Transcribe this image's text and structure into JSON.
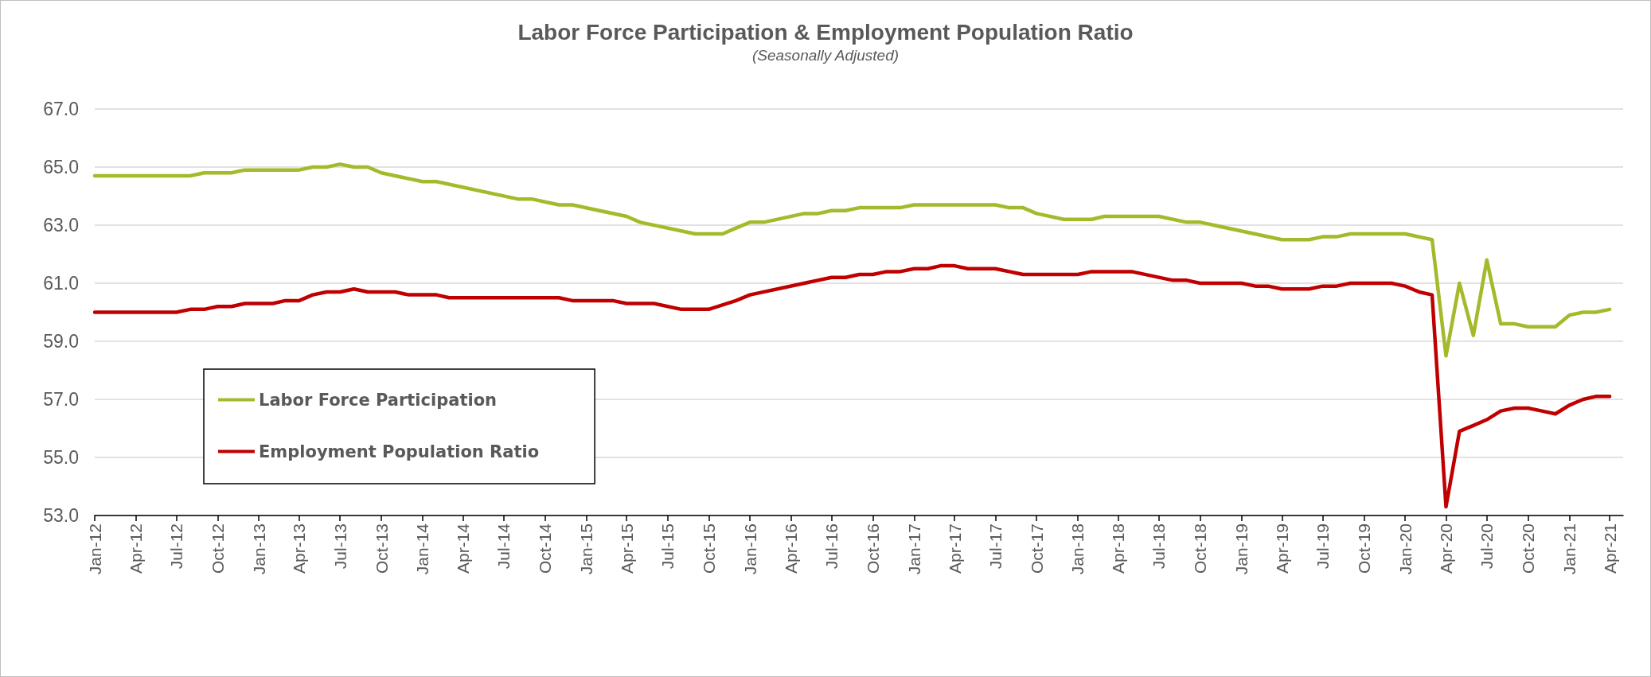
{
  "chart_data": {
    "type": "line",
    "title": "Labor Force Participation & Employment Population Ratio",
    "subtitle": "(Seasonally Adjusted)",
    "series": [
      {
        "name": "Labor Force Participation",
        "color": "#a5b92b",
        "x": [
          "2012-01",
          "2012-08",
          "2012-09",
          "2012-11",
          "2012-12",
          "2013-04",
          "2013-05",
          "2013-06",
          "2013-07",
          "2013-08",
          "2013-09",
          "2013-10",
          "2014-01",
          "2014-02",
          "2014-08",
          "2014-09",
          "2014-11",
          "2014-12",
          "2015-04",
          "2015-05",
          "2015-09",
          "2015-11",
          "2015-12",
          "2016-01",
          "2016-02",
          "2016-05",
          "2016-06",
          "2016-07",
          "2016-08",
          "2016-09",
          "2016-12",
          "2017-01",
          "2017-07",
          "2017-08",
          "2017-09",
          "2017-10",
          "2017-12",
          "2018-02",
          "2018-03",
          "2018-07",
          "2018-09",
          "2018-10",
          "2019-04",
          "2019-06",
          "2019-07",
          "2019-08",
          "2019-09",
          "2020-01",
          "2020-03",
          "2020-04",
          "2020-05",
          "2020-06",
          "2020-07",
          "2020-08",
          "2020-09",
          "2020-10",
          "2020-12",
          "2021-01",
          "2021-02",
          "2021-03",
          "2021-04"
        ],
        "values": [
          64.7,
          64.7,
          64.8,
          64.8,
          64.9,
          64.9,
          65.0,
          65.0,
          65.1,
          65.0,
          65.0,
          64.8,
          64.5,
          64.5,
          63.9,
          63.9,
          63.7,
          63.7,
          63.3,
          63.1,
          62.7,
          62.7,
          62.9,
          63.1,
          63.1,
          63.4,
          63.4,
          63.5,
          63.5,
          63.6,
          63.6,
          63.7,
          63.7,
          63.6,
          63.6,
          63.4,
          63.2,
          63.2,
          63.3,
          63.3,
          63.1,
          63.1,
          62.5,
          62.5,
          62.6,
          62.6,
          62.7,
          62.7,
          62.5,
          58.5,
          61.0,
          59.2,
          61.8,
          59.6,
          59.6,
          59.5,
          59.5,
          59.9,
          60.0,
          60.0,
          60.1
        ]
      },
      {
        "name": "Employment Population Ratio",
        "color": "#c00000",
        "x": [
          "2012-01",
          "2012-07",
          "2012-08",
          "2012-09",
          "2012-10",
          "2012-11",
          "2012-12",
          "2013-02",
          "2013-03",
          "2013-04",
          "2013-05",
          "2013-06",
          "2013-07",
          "2013-08",
          "2013-09",
          "2013-11",
          "2013-12",
          "2014-02",
          "2014-03",
          "2014-11",
          "2014-12",
          "2015-03",
          "2015-04",
          "2015-06",
          "2015-08",
          "2015-10",
          "2015-12",
          "2016-01",
          "2016-07",
          "2016-08",
          "2016-09",
          "2016-10",
          "2016-11",
          "2016-12",
          "2017-01",
          "2017-02",
          "2017-03",
          "2017-04",
          "2017-05",
          "2017-06",
          "2017-07",
          "2017-09",
          "2018-01",
          "2018-02",
          "2018-05",
          "2018-08",
          "2018-09",
          "2018-10",
          "2019-01",
          "2019-02",
          "2019-03",
          "2019-04",
          "2019-06",
          "2019-07",
          "2019-08",
          "2019-09",
          "2019-12",
          "2020-01",
          "2020-02",
          "2020-03",
          "2020-04",
          "2020-05",
          "2020-06",
          "2020-07",
          "2020-08",
          "2020-09",
          "2020-10",
          "2020-11",
          "2020-12",
          "2021-01",
          "2021-02",
          "2021-03",
          "2021-04"
        ],
        "values": [
          60.0,
          60.0,
          60.1,
          60.1,
          60.2,
          60.2,
          60.3,
          60.3,
          60.4,
          60.4,
          60.6,
          60.7,
          60.7,
          60.8,
          60.7,
          60.7,
          60.6,
          60.6,
          60.5,
          60.5,
          60.4,
          60.4,
          60.3,
          60.3,
          60.1,
          60.1,
          60.4,
          60.6,
          61.2,
          61.2,
          61.3,
          61.3,
          61.4,
          61.4,
          61.5,
          61.5,
          61.6,
          61.6,
          61.5,
          61.5,
          61.5,
          61.3,
          61.3,
          61.4,
          61.4,
          61.1,
          61.1,
          61.0,
          61.0,
          60.9,
          60.9,
          60.8,
          60.8,
          60.9,
          60.9,
          61.0,
          61.0,
          60.9,
          60.7,
          60.6,
          53.3,
          55.9,
          56.1,
          56.3,
          56.6,
          56.7,
          56.7,
          56.6,
          56.5,
          56.8,
          57.0,
          57.1,
          57.1
        ]
      }
    ],
    "xlim": [
      "2012-01",
      "2021-05"
    ],
    "xticks": [
      {
        "value": "2012-01",
        "label": "Jan-12"
      },
      {
        "value": "2012-04",
        "label": "Apr-12"
      },
      {
        "value": "2012-07",
        "label": "Jul-12"
      },
      {
        "value": "2012-10",
        "label": "Oct-12"
      },
      {
        "value": "2013-01",
        "label": "Jan-13"
      },
      {
        "value": "2013-04",
        "label": "Apr-13"
      },
      {
        "value": "2013-07",
        "label": "Jul-13"
      },
      {
        "value": "2013-10",
        "label": "Oct-13"
      },
      {
        "value": "2014-01",
        "label": "Jan-14"
      },
      {
        "value": "2014-04",
        "label": "Apr-14"
      },
      {
        "value": "2014-07",
        "label": "Jul-14"
      },
      {
        "value": "2014-10",
        "label": "Oct-14"
      },
      {
        "value": "2015-01",
        "label": "Jan-15"
      },
      {
        "value": "2015-04",
        "label": "Apr-15"
      },
      {
        "value": "2015-07",
        "label": "Jul-15"
      },
      {
        "value": "2015-10",
        "label": "Oct-15"
      },
      {
        "value": "2016-01",
        "label": "Jan-16"
      },
      {
        "value": "2016-04",
        "label": "Apr-16"
      },
      {
        "value": "2016-07",
        "label": "Jul-16"
      },
      {
        "value": "2016-10",
        "label": "Oct-16"
      },
      {
        "value": "2017-01",
        "label": "Jan-17"
      },
      {
        "value": "2017-04",
        "label": "Apr-17"
      },
      {
        "value": "2017-07",
        "label": "Jul-17"
      },
      {
        "value": "2017-10",
        "label": "Oct-17"
      },
      {
        "value": "2018-01",
        "label": "Jan-18"
      },
      {
        "value": "2018-04",
        "label": "Apr-18"
      },
      {
        "value": "2018-07",
        "label": "Jul-18"
      },
      {
        "value": "2018-10",
        "label": "Oct-18"
      },
      {
        "value": "2019-01",
        "label": "Jan-19"
      },
      {
        "value": "2019-04",
        "label": "Apr-19"
      },
      {
        "value": "2019-07",
        "label": "Jul-19"
      },
      {
        "value": "2019-10",
        "label": "Oct-19"
      },
      {
        "value": "2020-01",
        "label": "Jan-20"
      },
      {
        "value": "2020-04",
        "label": "Apr-20"
      },
      {
        "value": "2020-07",
        "label": "Jul-20"
      },
      {
        "value": "2020-10",
        "label": "Oct-20"
      },
      {
        "value": "2021-01",
        "label": "Jan-21"
      },
      {
        "value": "2021-04",
        "label": "Apr-21"
      }
    ],
    "ylim": [
      53,
      67
    ],
    "yticks": [
      {
        "value": 53,
        "label": "53.0"
      },
      {
        "value": 55,
        "label": "55.0"
      },
      {
        "value": 57,
        "label": "57.0"
      },
      {
        "value": 59,
        "label": "59.0"
      },
      {
        "value": 61,
        "label": "61.0"
      },
      {
        "value": 63,
        "label": "63.0"
      },
      {
        "value": 65,
        "label": "65.0"
      },
      {
        "value": 67,
        "label": "67.0"
      }
    ],
    "grid": "y",
    "legend": "bottom left",
    "marker": "none",
    "line_style": "solid"
  }
}
